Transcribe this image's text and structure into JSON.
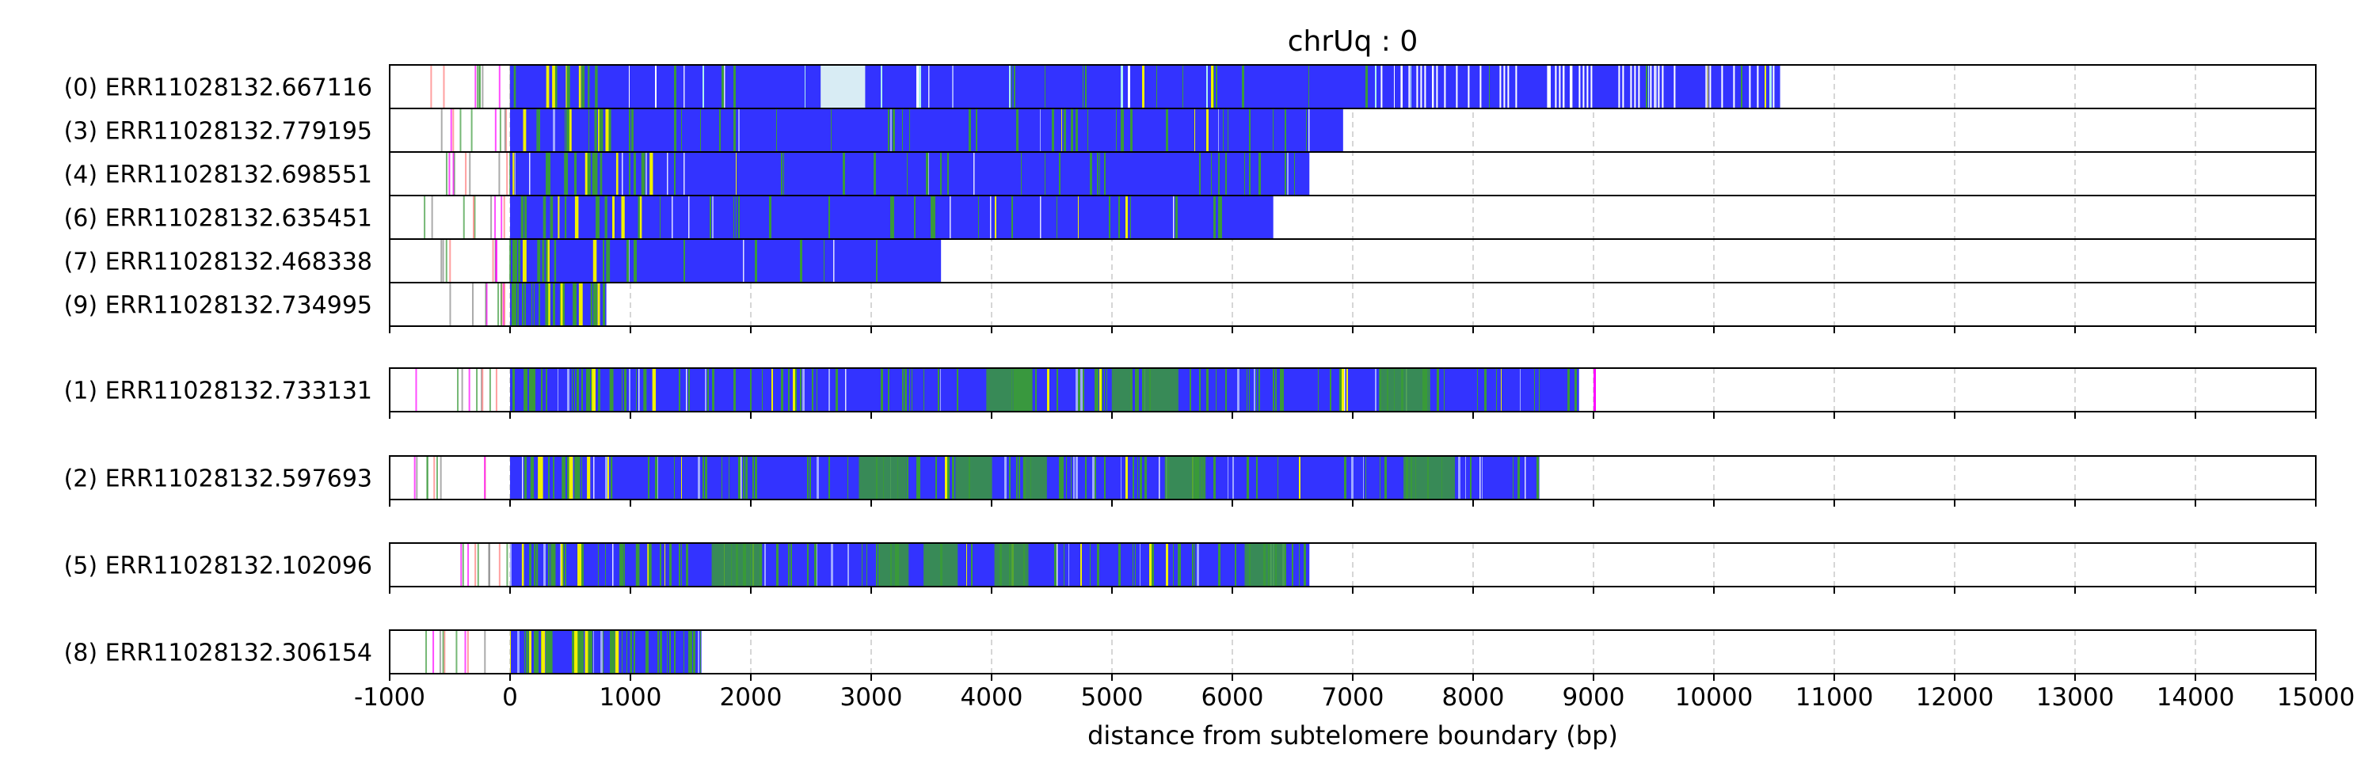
{
  "chart_data": {
    "type": "telomere read stripe plot",
    "title": "chrUq : 0",
    "xlabel": "distance from subtelomere boundary (bp)",
    "xlim": [
      -1000,
      15000
    ],
    "xticks": [
      -1000,
      0,
      1000,
      2000,
      3000,
      4000,
      5000,
      6000,
      7000,
      8000,
      9000,
      10000,
      11000,
      12000,
      13000,
      14000,
      15000
    ],
    "grid": "vertical dashed at each x tick",
    "colors": {
      "telomere_repeat": "#3333ff",
      "variant_green": "#3a9a3a",
      "variant_yellow": "#f0f000",
      "variant_cyan": "#aef0f0",
      "variant_magenta": "#ff00ff",
      "variant_red": "#ff7777",
      "gap_white": "#ffffff"
    },
    "groups": [
      {
        "reads": [
          {
            "label": "(0) ERR11028132.667116",
            "start": -800,
            "end": 10550,
            "pattern": "blue_with_cyan_and_white_gaps"
          },
          {
            "label": "(3) ERR11028132.779195",
            "start": -600,
            "end": 6920,
            "pattern": "blue_with_green"
          },
          {
            "label": "(4) ERR11028132.698551",
            "start": -580,
            "end": 6640,
            "pattern": "blue_with_green"
          },
          {
            "label": "(6) ERR11028132.635451",
            "start": -900,
            "end": 6340,
            "pattern": "blue_with_green"
          },
          {
            "label": "(7) ERR11028132.468338",
            "start": -600,
            "end": 3580,
            "pattern": "blue_with_green"
          },
          {
            "label": "(9) ERR11028132.734995",
            "start": -560,
            "end": 800,
            "pattern": "green_heavy"
          }
        ]
      },
      {
        "reads": [
          {
            "label": "(1) ERR11028132.733131",
            "start": -800,
            "end": 8880,
            "pattern": "blue_with_green_blocks"
          }
        ]
      },
      {
        "reads": [
          {
            "label": "(2) ERR11028132.597693",
            "start": -800,
            "end": 8550,
            "pattern": "blue_with_green_blocks"
          }
        ]
      },
      {
        "reads": [
          {
            "label": "(5) ERR11028132.102096",
            "start": -480,
            "end": 6640,
            "pattern": "blue_with_green_blocks"
          }
        ]
      },
      {
        "reads": [
          {
            "label": "(8) ERR11028132.306154",
            "start": -800,
            "end": 1590,
            "pattern": "green_heavy"
          }
        ]
      }
    ]
  }
}
